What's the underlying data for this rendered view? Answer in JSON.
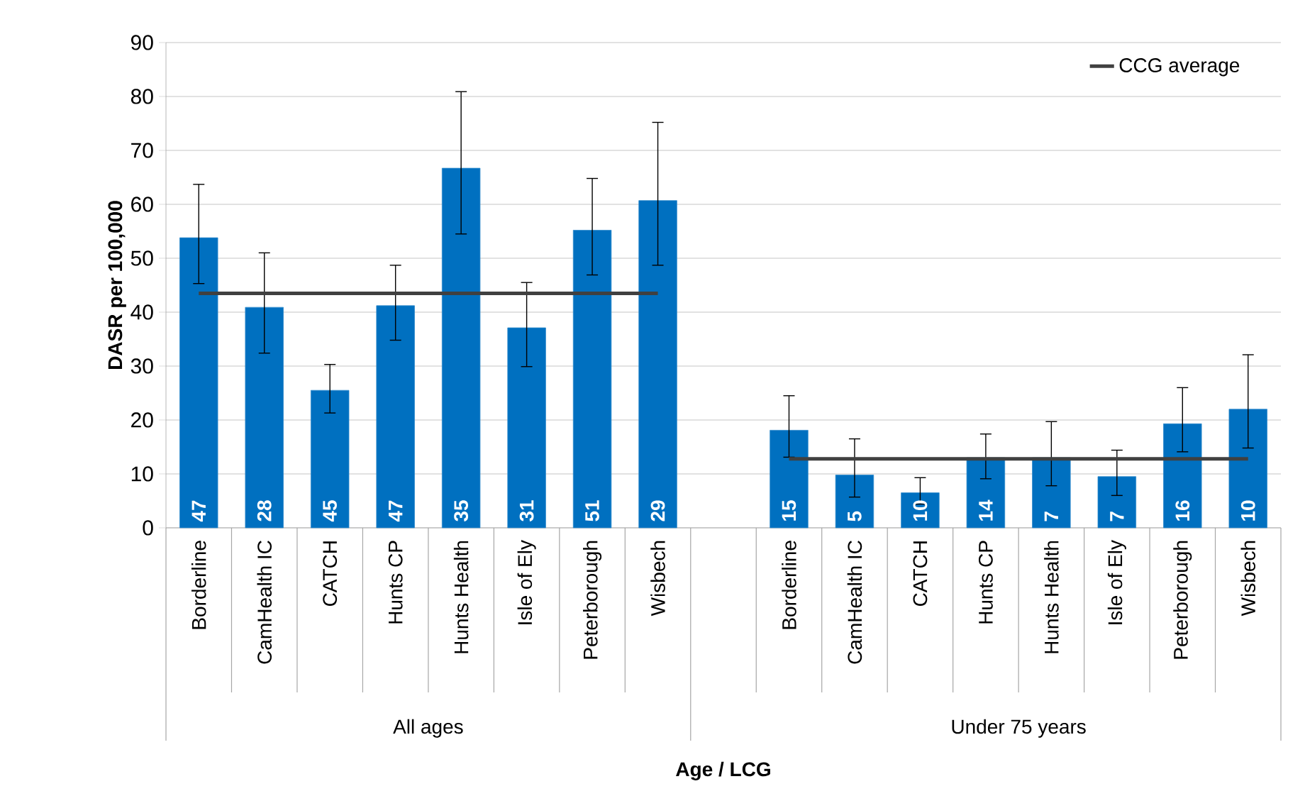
{
  "chart_data": {
    "type": "bar",
    "ylabel": "DASR per 100,000",
    "xlabel": "Age / LCG",
    "categories": [
      "Borderline",
      "CamHealth IC",
      "CATCH",
      "Hunts CP",
      "Hunts Health",
      "Isle of Ely",
      "Peterborough",
      "Wisbech",
      null,
      "Borderline",
      "CamHealth IC",
      "CATCH",
      "Hunts CP",
      "Hunts Health",
      "Isle of Ely",
      "Peterborough",
      "Wisbech"
    ],
    "series": [
      {
        "color": "#0070c0",
        "values": [
          53.8,
          40.9,
          25.5,
          41.2,
          66.7,
          37.1,
          55.2,
          60.7,
          null,
          18.1,
          9.8,
          6.5,
          13.0,
          13.0,
          9.5,
          19.3,
          22.0
        ],
        "errors": [
          [
            45.3,
            63.7
          ],
          [
            32.4,
            51.0
          ],
          [
            21.3,
            30.3
          ],
          [
            34.8,
            48.7
          ],
          [
            54.5,
            80.9
          ],
          [
            29.9,
            45.5
          ],
          [
            46.9,
            64.8
          ],
          [
            48.7,
            75.2
          ],
          null,
          [
            13.1,
            24.5
          ],
          [
            5.7,
            16.5
          ],
          [
            4.4,
            9.3
          ],
          [
            9.1,
            17.4
          ],
          [
            7.8,
            19.7
          ],
          [
            6.0,
            14.4
          ],
          [
            14.1,
            26.0
          ],
          [
            14.8,
            32.1
          ]
        ]
      },
      {
        "type": "line",
        "name": "CCG average",
        "color": "#404040",
        "values": [
          43.5,
          43.5,
          43.5,
          43.5,
          43.5,
          43.5,
          43.5,
          43.5,
          null,
          12.8,
          12.8,
          12.8,
          12.8,
          12.8,
          12.8,
          12.8,
          12.8
        ]
      }
    ],
    "annotations": [
      "All ages",
      "Under 75 years",
      "47",
      "28",
      "45",
      "47",
      "35",
      "31",
      "51",
      "29",
      "15",
      "5",
      "10",
      "14",
      "7",
      "7",
      "16",
      "10"
    ],
    "ylim": [
      0,
      90
    ],
    "yticks": [
      0,
      10,
      20,
      30,
      40,
      50,
      60,
      70,
      80,
      90
    ],
    "grid": "y",
    "legend": "top right",
    "marker": "none"
  }
}
